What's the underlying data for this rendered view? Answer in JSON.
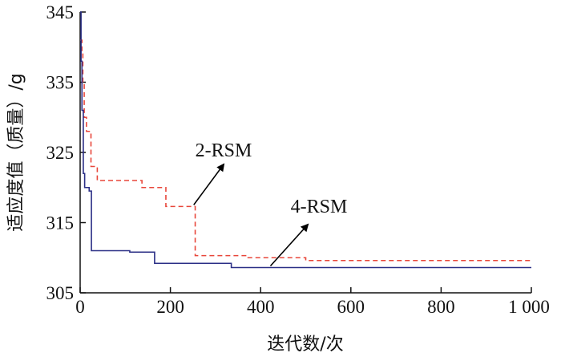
{
  "chart_data": {
    "type": "line",
    "xlabel": "迭代数/次",
    "ylabel": "适应度值（质量）/g",
    "xlim": [
      0,
      1000
    ],
    "ylim": [
      305,
      345
    ],
    "x_ticks": [
      0,
      200,
      400,
      600,
      800,
      1000
    ],
    "x_tick_labels": [
      "0",
      "200",
      "400",
      "600",
      "800",
      "1 000"
    ],
    "y_ticks": [
      305,
      315,
      325,
      335,
      345
    ],
    "y_tick_labels": [
      "305",
      "315",
      "325",
      "335",
      "345"
    ],
    "grid": false,
    "series": [
      {
        "name": "2-RSM",
        "color": "#e8463a",
        "style": "dashed",
        "step": true,
        "x": [
          0,
          2,
          4,
          6,
          9,
          14,
          24,
          38,
          60,
          130,
          137,
          185,
          190,
          250,
          255,
          360,
          370,
          500,
          1000
        ],
        "y": [
          341,
          341,
          339.5,
          335,
          330,
          328,
          323,
          321,
          321,
          321,
          320,
          320,
          317.3,
          317.3,
          310.3,
          310.3,
          310,
          309.6,
          309.6
        ]
      },
      {
        "name": "4-RSM",
        "color": "#2b2f86",
        "style": "solid",
        "step": true,
        "x": [
          0,
          2,
          4,
          7,
          10,
          20,
          25,
          100,
          110,
          160,
          165,
          330,
          335,
          1000
        ],
        "y": [
          345,
          338,
          331,
          322,
          320,
          319.5,
          311,
          311,
          310.8,
          310.8,
          309.2,
          309.2,
          308.6,
          308.6
        ]
      }
    ],
    "annotations": [
      {
        "text": "2-RSM",
        "target_x": 250,
        "target_y": 317.3
      },
      {
        "text": "4-RSM",
        "target_x": 420,
        "target_y": 308.6
      }
    ]
  }
}
